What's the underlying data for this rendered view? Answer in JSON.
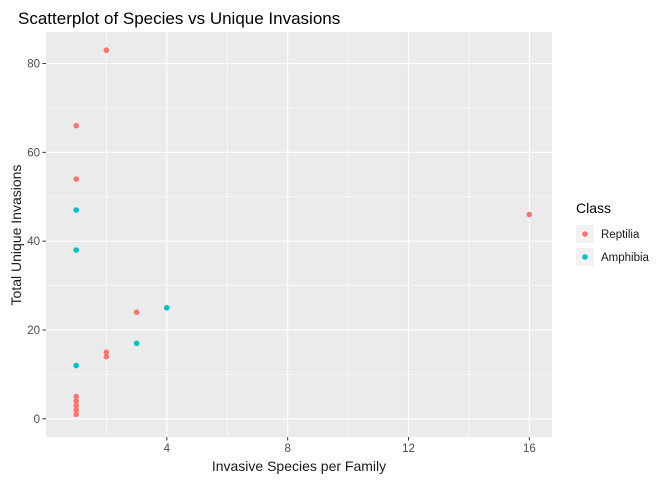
{
  "chart_data": {
    "type": "scatter",
    "title": "Scatterplot of Species vs Unique Invasions",
    "xlabel": "Invasive Species per Family",
    "ylabel": "Total Unique Invasions",
    "xlim": [
      0.0,
      16.75
    ],
    "ylim": [
      -4.1,
      87.1
    ],
    "x_ticks": [
      4,
      8,
      12,
      16
    ],
    "y_ticks": [
      0,
      20,
      40,
      60,
      80
    ],
    "x_minor": [
      2,
      6,
      10,
      14
    ],
    "y_minor": [
      10,
      30,
      50,
      70
    ],
    "grid": true,
    "panel_background": "#EBEBEB",
    "grid_color": "#FFFFFF",
    "legend": {
      "title": "Class",
      "position": "right",
      "entries": [
        {
          "label": "Reptilia",
          "color": "#F8766D"
        },
        {
          "label": "Amphibia",
          "color": "#00BFC4"
        }
      ]
    },
    "series": [
      {
        "name": "Reptilia",
        "color": "#F8766D",
        "points": [
          {
            "x": 2,
            "y": 83
          },
          {
            "x": 1,
            "y": 66
          },
          {
            "x": 1,
            "y": 54
          },
          {
            "x": 16,
            "y": 46
          },
          {
            "x": 3,
            "y": 24
          },
          {
            "x": 2,
            "y": 15
          },
          {
            "x": 2,
            "y": 14
          },
          {
            "x": 1,
            "y": 5
          },
          {
            "x": 1,
            "y": 4
          },
          {
            "x": 1,
            "y": 3
          },
          {
            "x": 1,
            "y": 2
          },
          {
            "x": 1,
            "y": 1
          }
        ]
      },
      {
        "name": "Amphibia",
        "color": "#00BFC4",
        "points": [
          {
            "x": 1,
            "y": 47
          },
          {
            "x": 1,
            "y": 38
          },
          {
            "x": 4,
            "y": 25
          },
          {
            "x": 3,
            "y": 17
          },
          {
            "x": 1,
            "y": 12
          }
        ]
      }
    ]
  }
}
